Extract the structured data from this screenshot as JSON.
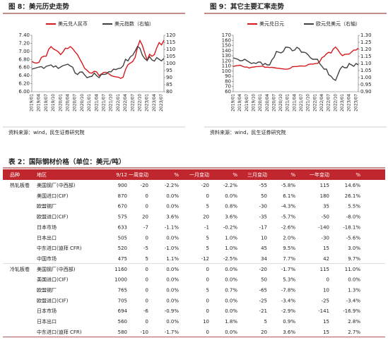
{
  "chart_data": [
    {
      "type": "line",
      "title": "图 8：美元历史走势",
      "source": "资料来源：wind，民生证券研究院",
      "categories": [
        "2019/01",
        null,
        null,
        "2019/04",
        null,
        null,
        "2019/07",
        null,
        null,
        "2019/10",
        null,
        null,
        "2020/01",
        null,
        null,
        "2020/04",
        null,
        null,
        "2020/07",
        null,
        null,
        "2020/10",
        null,
        null,
        "2021/01",
        null,
        null,
        "2021/04",
        null,
        null,
        "2021/07",
        null,
        null,
        "2021/10",
        null,
        null,
        "2022/01",
        null,
        null,
        "2022/04",
        null,
        null,
        "2022/07",
        null,
        null,
        "2022/10",
        null,
        null,
        "2023/01",
        null,
        null,
        "2023/04",
        null,
        null,
        "2023/07",
        null
      ],
      "series": [
        {
          "name": "美元兑人民币",
          "color": "#d7191c",
          "values": [
            6.75,
            6.72,
            6.71,
            6.73,
            6.85,
            6.88,
            6.88,
            7.05,
            7.12,
            7.06,
            7.03,
            6.99,
            6.92,
            6.99,
            7.08,
            7.07,
            7.12,
            7.07,
            6.99,
            6.92,
            6.81,
            6.7,
            6.58,
            6.53,
            6.47,
            6.46,
            6.51,
            6.49,
            6.4,
            6.44,
            6.48,
            6.48,
            6.45,
            6.4,
            6.38,
            6.37,
            6.36,
            6.33,
            6.36,
            6.55,
            6.67,
            6.71,
            6.75,
            6.85,
            7.1,
            7.27,
            7.15,
            6.96,
            6.78,
            6.93,
            6.88,
            6.92,
            7.09,
            7.22,
            7.16,
            7.28
          ]
        },
        {
          "name": "美元指数（右轴）",
          "color": "#404040",
          "axis": "y2",
          "values": [
            96,
            96.5,
            97,
            97.5,
            97.8,
            96.5,
            98,
            98.5,
            99,
            97.5,
            98.3,
            96.5,
            97.5,
            98.5,
            99,
            99.5,
            98.3,
            97.4,
            93.3,
            92.2,
            93.9,
            94,
            91.9,
            89.9,
            90.6,
            90.9,
            93.2,
            91.3,
            90,
            92.4,
            92.2,
            92.6,
            94.2,
            94.1,
            96,
            95.7,
            96.5,
            96.7,
            98.3,
            103,
            101.8,
            104.7,
            105.9,
            108.8,
            112.1,
            110.8,
            105.9,
            103.5,
            102.1,
            104.9,
            102.5,
            101.7,
            104.2,
            102.9,
            101.9,
            103.6
          ]
        }
      ],
      "ylim": [
        6,
        7.4
      ],
      "yticks": [
        {
          "value": 6,
          "label": "6.00"
        },
        {
          "value": 6.2,
          "label": "6.20"
        },
        {
          "value": 6.4,
          "label": "6.40"
        },
        {
          "value": 6.6,
          "label": "6.60"
        },
        {
          "value": 6.8,
          "label": "6.80"
        },
        {
          "value": 7,
          "label": "7.00"
        },
        {
          "value": 7.2,
          "label": "7.20"
        },
        {
          "value": 7.4,
          "label": "7.40"
        }
      ],
      "y2lim": [
        80,
        120
      ],
      "y2ticks": [
        80,
        85,
        90,
        95,
        100,
        105,
        110,
        115,
        120
      ]
    },
    {
      "type": "line",
      "title": "图 9：其它主要汇率走势",
      "source": "资料来源：wind，民生证券研究院",
      "categories": [
        "2019/01",
        null,
        null,
        "2019/04",
        null,
        null,
        "2019/07",
        null,
        null,
        "2019/10",
        null,
        null,
        "2020/01",
        null,
        null,
        "2020/04",
        null,
        null,
        "2020/07",
        null,
        null,
        "2020/10",
        null,
        null,
        "2021/01",
        null,
        null,
        "2021/04",
        null,
        null,
        "2021/07",
        null,
        null,
        "2021/10",
        null,
        null,
        "2022/01",
        null,
        null,
        "2022/04",
        null,
        null,
        "2022/07",
        null,
        null,
        "2022/10",
        null,
        null,
        "2023/01",
        null,
        null,
        "2023/04",
        null,
        null,
        "2023/07",
        null
      ],
      "series": [
        {
          "name": "美元兑日元",
          "color": "#d7191c",
          "values": [
            108.9,
            110.4,
            111,
            111.7,
            109.6,
            108,
            108.3,
            106.2,
            107.6,
            108.1,
            108.9,
            109.1,
            109.3,
            110,
            107.4,
            107.8,
            107.2,
            107.6,
            106.8,
            106,
            105.6,
            105,
            104.4,
            103.8,
            104.1,
            105.4,
            108.7,
            109.1,
            109.1,
            110.1,
            110.2,
            109.9,
            110.2,
            113.1,
            114.1,
            113.8,
            114.8,
            115.2,
            118.5,
            126.3,
            128.8,
            133.8,
            136.7,
            135.3,
            143.2,
            147,
            142,
            134.8,
            130.3,
            132.7,
            133.2,
            133.4,
            137.2,
            141.2,
            141.2,
            144.8
          ]
        },
        {
          "name": "欧元兑美元（右轴）",
          "color": "#404040",
          "axis": "y2",
          "values": [
            1.14,
            1.135,
            1.13,
            1.12,
            1.12,
            1.13,
            1.12,
            1.11,
            1.1,
            1.105,
            1.1,
            1.11,
            1.11,
            1.09,
            1.1,
            1.09,
            1.09,
            1.125,
            1.145,
            1.185,
            1.18,
            1.175,
            1.185,
            1.215,
            1.215,
            1.21,
            1.19,
            1.195,
            1.215,
            1.205,
            1.18,
            1.18,
            1.175,
            1.16,
            1.14,
            1.13,
            1.13,
            1.13,
            1.1,
            1.08,
            1.06,
            1.06,
            1.02,
            1.01,
            0.99,
            0.98,
            1.02,
            1.06,
            1.08,
            1.07,
            1.07,
            1.1,
            1.09,
            1.08,
            1.1,
            1.09
          ]
        }
      ],
      "ylim": [
        60,
        170
      ],
      "yticks": [
        60,
        70,
        80,
        90,
        100,
        110,
        120,
        130,
        140,
        150,
        160,
        170
      ],
      "y2lim": [
        0.9,
        1.3
      ],
      "y2ticks": [
        {
          "value": 0.9,
          "label": "0.90"
        },
        {
          "value": 0.95,
          "label": "0.95"
        },
        {
          "value": 1,
          "label": "1.00"
        },
        {
          "value": 1.05,
          "label": "1.05"
        },
        {
          "value": 1.1,
          "label": "1.10"
        },
        {
          "value": 1.15,
          "label": "1.15"
        },
        {
          "value": 1.2,
          "label": "1.20"
        },
        {
          "value": 1.25,
          "label": "1.25"
        },
        {
          "value": 1.3,
          "label": "1.30"
        }
      ]
    }
  ],
  "table": {
    "title": "表 2：国际钢材价格（单位：美元/吨）",
    "header": [
      "品种",
      "地区",
      "9/12",
      "一周变动",
      "%",
      "一月变动",
      "%",
      "三月变动",
      "%",
      "一年变动",
      "%"
    ],
    "groups": [
      {
        "name": "热轧板卷",
        "rows": [
          [
            "美国钢厂(中西部)",
            "900",
            "-20",
            "-2.2%",
            "-20",
            "-2.2%",
            "-55",
            "-5.8%",
            "115",
            "14.6%"
          ],
          [
            "美国进口(CIF)",
            "870",
            "0",
            "0.0%",
            "0",
            "0.0%",
            "50",
            "6.1%",
            "180",
            "26.1%"
          ],
          [
            "欧盟钢厂",
            "670",
            "0",
            "0.0%",
            "5",
            "0.8%",
            "-30",
            "-4.3%",
            "35",
            "5.5%"
          ],
          [
            "欧盟进口(CIF)",
            "575",
            "20",
            "3.6%",
            "20",
            "3.6%",
            "-35",
            "-5.7%",
            "-50",
            "-8.0%"
          ],
          [
            "日本市场",
            "633",
            "-7",
            "-1.1%",
            "-1",
            "-0.2%",
            "-17",
            "-2.6%",
            "-140",
            "-18.1%"
          ],
          [
            "日本出口",
            "505",
            "0",
            "0.0%",
            "5",
            "1.0%",
            "10",
            "2.0%",
            "-30",
            "-5.6%"
          ],
          [
            "中东进口(迪拜 CFR)",
            "520",
            "-5",
            "-1.0%",
            "5",
            "1.0%",
            "45",
            "9.5%",
            "15",
            "3.0%"
          ],
          [
            "中国市场",
            "475",
            "5",
            "1.1%",
            "-12",
            "-2.5%",
            "34",
            "7.7%",
            "42",
            "9.7%"
          ]
        ]
      },
      {
        "name": "冷轧板卷",
        "rows": [
          [
            "美国钢厂(中西部)",
            "1160",
            "0",
            "0.0%",
            "0",
            "0.0%",
            "-20",
            "-1.7%",
            "115",
            "11.0%"
          ],
          [
            "美国进口(CIF)",
            "1000",
            "0",
            "0.0%",
            "0",
            "0.0%",
            "50",
            "5.3%",
            "0",
            "0.0%"
          ],
          [
            "欧盟钢厂",
            "765",
            "0",
            "0.0%",
            "5",
            "0.7%",
            "-65",
            "-7.8%",
            "10",
            "1.3%"
          ],
          [
            "欧盟进口(CIF)",
            "705",
            "0",
            "0.0%",
            "0",
            "0.0%",
            "-25",
            "-3.4%",
            "-25",
            "-3.4%"
          ],
          [
            "日本市场",
            "694",
            "-6",
            "-0.9%",
            "0",
            "0.0%",
            "-21",
            "-2.9%",
            "-141",
            "-16.9%"
          ],
          [
            "日本出口",
            "560",
            "0",
            "0.0%",
            "10",
            "1.8%",
            "5",
            "0.9%",
            "15",
            "2.8%"
          ],
          [
            "中东进口(迪拜 CFR)",
            "580",
            "-10",
            "-1.7%",
            "0",
            "0.0%",
            "20",
            "3.6%",
            "15",
            "2.7%"
          ]
        ]
      }
    ]
  }
}
